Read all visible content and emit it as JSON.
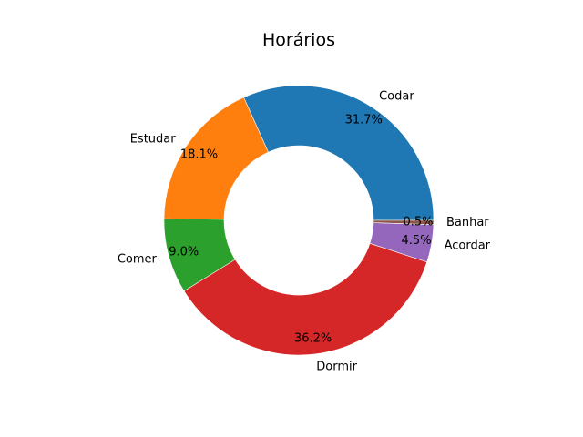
{
  "chart_data": {
    "type": "pie",
    "style": "donut",
    "title": "Horários",
    "categories": [
      "Codar",
      "Estudar",
      "Comer",
      "Dormir",
      "Acordar",
      "Banhar"
    ],
    "values": [
      31.7,
      18.1,
      9.0,
      36.2,
      4.5,
      0.5
    ],
    "value_labels": [
      "31.7%",
      "18.1%",
      "9.0%",
      "36.2%",
      "4.5%",
      "0.5%"
    ],
    "colors": [
      "#1f77b4",
      "#ff7f0e",
      "#2ca02c",
      "#d62728",
      "#9467bd",
      "#8c564b"
    ],
    "start_angle_deg": 0,
    "direction": "counterclockwise",
    "legend": false
  }
}
